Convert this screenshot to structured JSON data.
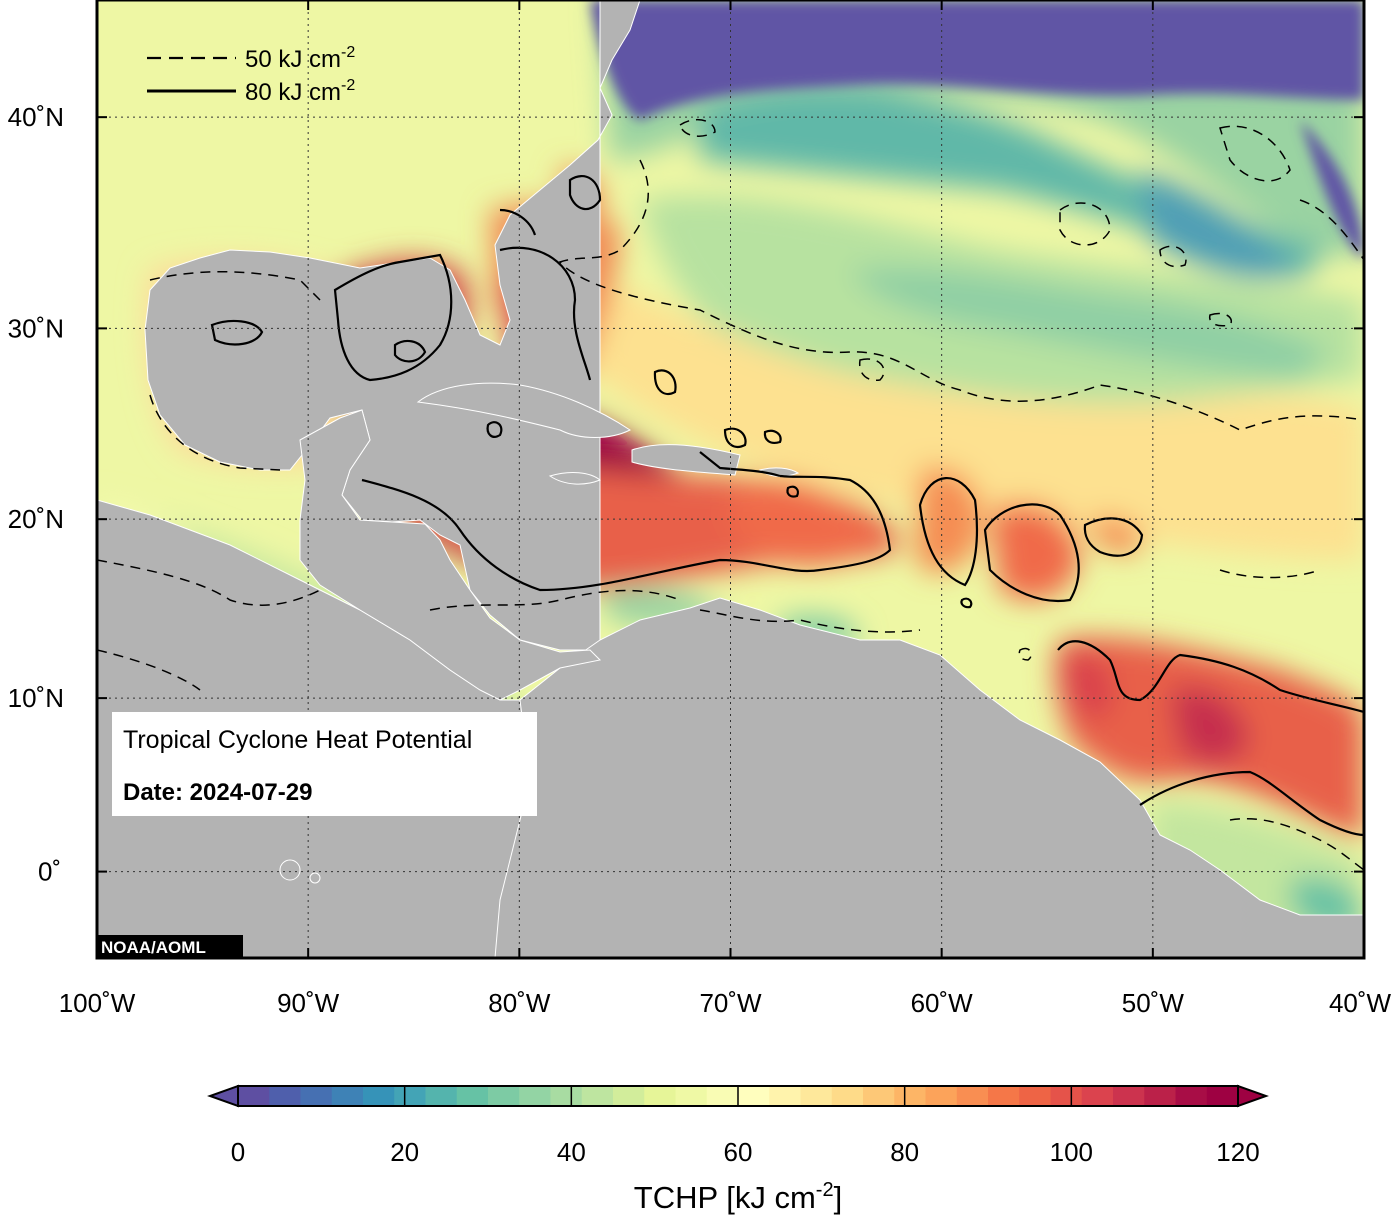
{
  "map": {
    "title": "Tropical Cyclone Heat Potential",
    "date_label": "Date: 2024-07-29",
    "credit": "NOAA/AOML",
    "lat_ticks": [
      "40˚N",
      "30˚N",
      "20˚N",
      "10˚N",
      "0˚"
    ],
    "lon_ticks": [
      "100˚W",
      "90˚W",
      "80˚W",
      "70˚W",
      "60˚W",
      "50˚W",
      "40˚W"
    ],
    "lat_values": [
      40,
      30,
      20,
      10,
      0
    ],
    "lon_values": [
      -100,
      -90,
      -80,
      -70,
      -60,
      -50,
      -40
    ],
    "extent": {
      "lon_min": -100,
      "lon_max": -40,
      "lat_min": -5,
      "lat_max": 45
    },
    "land_color": "#b3b3b3",
    "contour_legend": [
      {
        "style": "dashed",
        "label": "50 kJ cm",
        "superscript": "-2"
      },
      {
        "style": "solid",
        "label": "80 kJ cm",
        "superscript": "-2"
      }
    ]
  },
  "colorbar": {
    "title": "TCHP [kJ cm",
    "title_superscript": "-2",
    "title_close": "]",
    "labels": [
      "0",
      "20",
      "40",
      "60",
      "80",
      "100",
      "120"
    ],
    "min": 0,
    "max": 120,
    "colors": [
      "#5e4fa2",
      "#4f5fac",
      "#4670b2",
      "#3e82b6",
      "#3693b8",
      "#43a4b6",
      "#54b4ad",
      "#66c2a5",
      "#7dcba4",
      "#93d4a4",
      "#a8dca2",
      "#bee5a0",
      "#d2ed9b",
      "#e6f598",
      "#eff9a5",
      "#f9fcb4",
      "#fffebe",
      "#fff3ac",
      "#fee89b",
      "#fedb89",
      "#fdc877",
      "#fdb566",
      "#fca35a",
      "#f98e52",
      "#f57748",
      "#ee6445",
      "#e5534a",
      "#db434e",
      "#cc334e",
      "#bb2149",
      "#a80d46",
      "#9e0142"
    ]
  }
}
